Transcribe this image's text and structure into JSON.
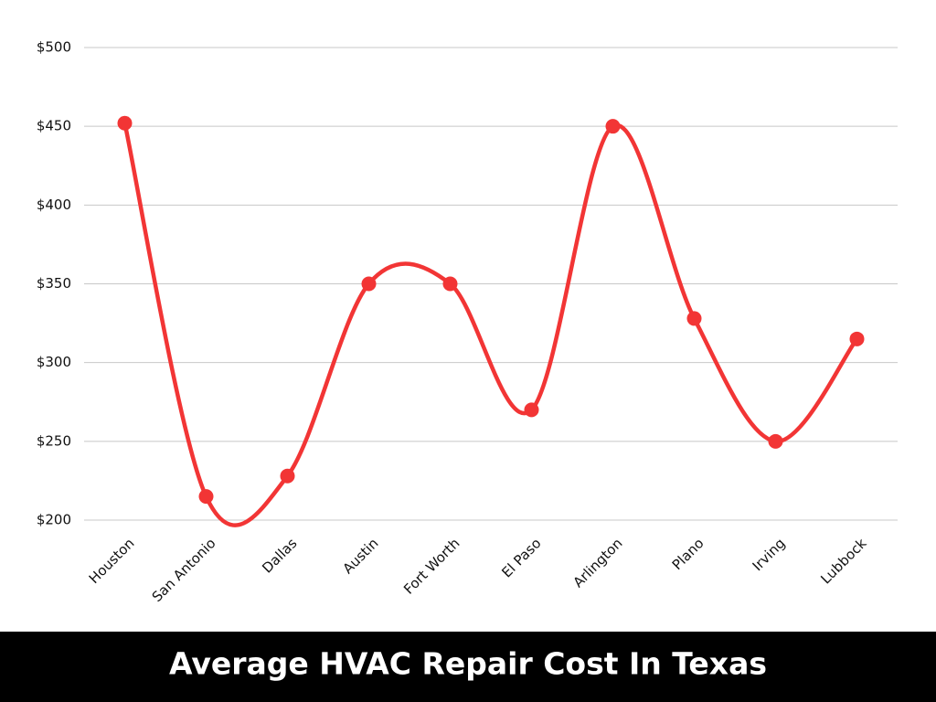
{
  "chart_data": {
    "type": "line",
    "title": "Average  HVAC Repair Cost In Texas",
    "categories": [
      "Houston",
      "San Antonio",
      "Dallas",
      "Austin",
      "Fort Worth",
      "El Paso",
      "Arlington",
      "Plano",
      "Irving",
      "Lubbock"
    ],
    "values": [
      452,
      215,
      228,
      350,
      350,
      270,
      450,
      328,
      250,
      315
    ],
    "color": "#f23535",
    "smooth": true,
    "grid": true,
    "ylim": [
      200,
      500
    ],
    "yticks": [
      {
        "value": 200,
        "label": "$200"
      },
      {
        "value": 250,
        "label": "$250"
      },
      {
        "value": 300,
        "label": "$300"
      },
      {
        "value": 350,
        "label": "$350"
      },
      {
        "value": 400,
        "label": "$400"
      },
      {
        "value": 450,
        "label": "$450"
      },
      {
        "value": 500,
        "label": "$500"
      }
    ]
  }
}
